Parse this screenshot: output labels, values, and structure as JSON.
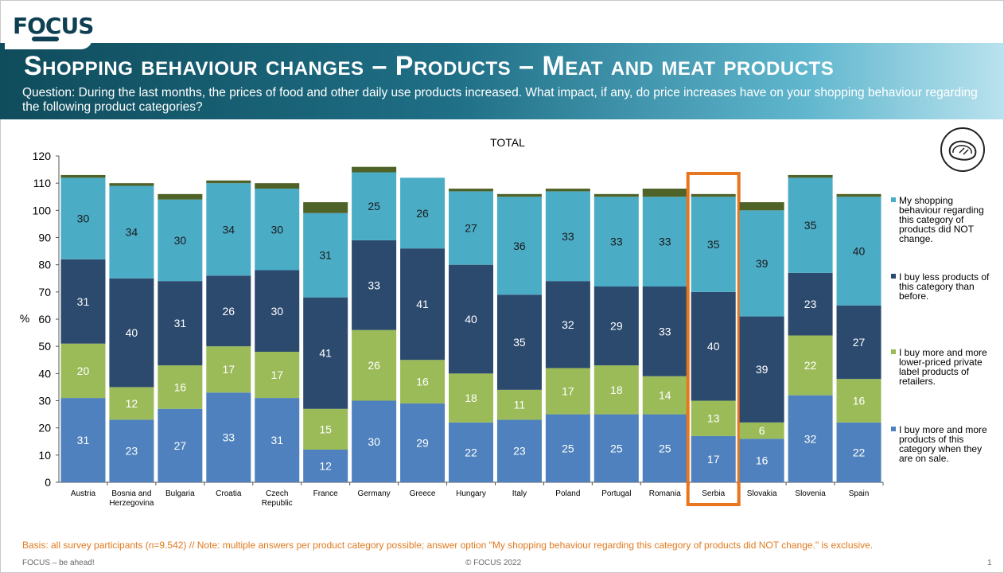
{
  "logo": {
    "text": "FOCUS"
  },
  "header": {
    "title": "Shopping behaviour changes – Products – Meat and meat products",
    "question": "Question: During the last months, the prices of food and other daily use products increased. What impact, if any, do price increases have on your shopping behaviour regarding the following product categories?"
  },
  "icons": {
    "category": "meat-steak-icon"
  },
  "chart_data": {
    "type": "bar",
    "stacked": true,
    "title": "TOTAL",
    "ylabel": "%",
    "ylim": [
      0,
      120
    ],
    "yticks": [
      0,
      10,
      20,
      30,
      40,
      50,
      60,
      70,
      80,
      90,
      100,
      110,
      120
    ],
    "categories": [
      "Austria",
      "Bosnia and Herzegovina",
      "Bulgaria",
      "Croatia",
      "Czech Republic",
      "France",
      "Germany",
      "Greece",
      "Hungary",
      "Italy",
      "Poland",
      "Portugal",
      "Romania",
      "Serbia",
      "Slovakia",
      "Slovenia",
      "Spain"
    ],
    "highlighted_category": "Serbia",
    "highlight_color": "#e8761e",
    "series": [
      {
        "name": "I  buy more and more products of this category when they are on sale.",
        "color": "#4e81bd",
        "values": [
          31,
          23,
          27,
          33,
          31,
          12,
          30,
          29,
          22,
          23,
          25,
          25,
          25,
          17,
          16,
          32,
          22
        ]
      },
      {
        "name": "I buy more and more lower-priced private label products of retailers.",
        "color": "#9bbb59",
        "values": [
          20,
          12,
          16,
          17,
          17,
          15,
          26,
          16,
          18,
          11,
          17,
          18,
          14,
          13,
          6,
          22,
          16
        ]
      },
      {
        "name": "I buy less products of this category than before.",
        "color": "#2c4a6e",
        "values": [
          31,
          40,
          31,
          26,
          30,
          41,
          33,
          41,
          40,
          35,
          32,
          29,
          33,
          40,
          39,
          23,
          27
        ]
      },
      {
        "name": "My shopping behaviour regarding this category of products did NOT change.",
        "color": "#4bacc6",
        "values": [
          30,
          34,
          30,
          34,
          30,
          31,
          25,
          26,
          27,
          36,
          33,
          33,
          33,
          35,
          39,
          35,
          40
        ]
      },
      {
        "name": "",
        "color": "#4f6228",
        "values": [
          1,
          1,
          2,
          1,
          2,
          4,
          2,
          0,
          1,
          1,
          1,
          1,
          3,
          1,
          3,
          1,
          1
        ]
      }
    ]
  },
  "footer": {
    "basis": "Basis: all survey participants (n=9.542) // Note: multiple answers per product category possible; answer option \"My shopping behaviour regarding this category of products did NOT change.\" is exclusive.",
    "left": "FOCUS – be ahead!",
    "center": "© FOCUS 2022",
    "page": "1"
  }
}
